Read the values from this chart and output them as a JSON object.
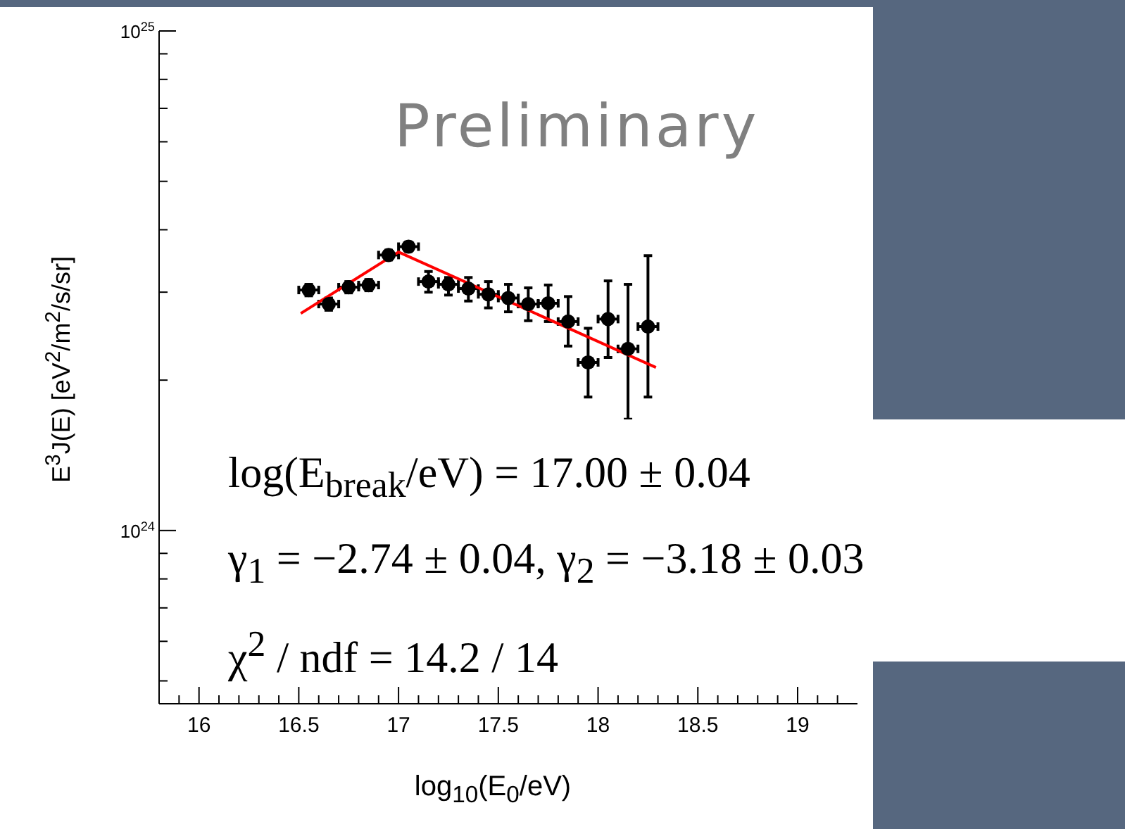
{
  "chart_data": {
    "type": "scatter",
    "xlabel": "log$_{10}$(E$_{0}$/eV)",
    "ylabel": "E$^{3}$J(E) [eV$^{2}$/m$^{2}$/s/sr]",
    "annotations": [
      "Preliminary",
      "log(E$_{break}$/eV) = 17.00 ± 0.04",
      "γ$_{1}$ = −2.74 ± 0.04,  γ$_{2}$ = −3.18 ± 0.03",
      "χ$^{2}$ / ndf = 14.2 / 14"
    ],
    "log": "y",
    "xlim": [
      15.8,
      19.3
    ],
    "ylim": [
      4.5e+23,
      1e+25
    ],
    "xticks": [
      {
        "value": 15.9,
        "label": null
      },
      16,
      {
        "value": 16.1,
        "label": null
      },
      {
        "value": 16.2,
        "label": null
      },
      {
        "value": 16.3,
        "label": null
      },
      {
        "value": 16.4,
        "label": null
      },
      16.5,
      {
        "value": 16.6,
        "label": null
      },
      {
        "value": 16.7,
        "label": null
      },
      {
        "value": 16.8,
        "label": null
      },
      {
        "value": 16.9,
        "label": null
      },
      17,
      {
        "value": 17.1,
        "label": null
      },
      {
        "value": 17.2,
        "label": null
      },
      {
        "value": 17.3,
        "label": null
      },
      {
        "value": 17.4,
        "label": null
      },
      17.5,
      {
        "value": 17.6,
        "label": null
      },
      {
        "value": 17.7,
        "label": null
      },
      {
        "value": 17.8,
        "label": null
      },
      {
        "value": 17.9,
        "label": null
      },
      18,
      {
        "value": 18.1,
        "label": null
      },
      {
        "value": 18.2,
        "label": null
      },
      {
        "value": 18.3,
        "label": null
      },
      {
        "value": 18.4,
        "label": null
      },
      18.5,
      {
        "value": 18.6,
        "label": null
      },
      {
        "value": 18.7,
        "label": null
      },
      {
        "value": 18.8,
        "label": null
      },
      {
        "value": 18.9,
        "label": null
      },
      19,
      {
        "value": 19.1,
        "label": null
      },
      {
        "value": 19.2,
        "label": null
      }
    ],
    "yticks": [
      {
        "value": 5e+23,
        "label": null
      },
      {
        "value": 6e+23,
        "label": null
      },
      {
        "value": 7e+23,
        "label": null
      },
      {
        "value": 8e+23,
        "label": null
      },
      {
        "value": 9e+23,
        "label": null
      },
      {
        "value": 1e+24,
        "label": "10$^{24}$"
      },
      {
        "value": 2e+24,
        "label": null
      },
      {
        "value": 3e+24,
        "label": null
      },
      {
        "value": 4e+24,
        "label": null
      },
      {
        "value": 5e+24,
        "label": null
      },
      {
        "value": 6e+24,
        "label": null
      },
      {
        "value": 7e+24,
        "label": null
      },
      {
        "value": 8e+24,
        "label": null
      },
      {
        "value": 9e+24,
        "label": null
      },
      {
        "value": 1e+25,
        "label": "10$^{25}$"
      }
    ],
    "series": [
      {
        "marker": "circle",
        "color": "#000000",
        "x": [
          16.55,
          16.65,
          16.75,
          16.85,
          16.95,
          17.05,
          17.15,
          17.25,
          17.35,
          17.45,
          17.55,
          17.65,
          17.75,
          17.85,
          17.95,
          18.05,
          18.15,
          18.25
        ],
        "values": [
          3.03e+24,
          2.84e+24,
          3.07e+24,
          3.1e+24,
          3.56e+24,
          3.7e+24,
          3.15e+24,
          3.11e+24,
          3.05e+24,
          2.97e+24,
          2.92e+24,
          2.84e+24,
          2.85e+24,
          2.62e+24,
          2.17e+24,
          2.65e+24,
          2.31e+24,
          2.56e+24
        ],
        "errors": [
          8e+22,
          8e+22,
          8e+22,
          8e+22,
          8e+22,
          8e+22,
          [
            3e+24,
            3.3e+24
          ],
          [
            2.96e+24,
            3.21e+24
          ],
          [
            2.88e+24,
            3.21e+24
          ],
          [
            2.79e+24,
            3.15e+24
          ],
          [
            2.74e+24,
            3.11e+24
          ],
          [
            2.63e+24,
            3.06e+24
          ],
          [
            2.62e+24,
            3.1e+24
          ],
          [
            2.34e+24,
            2.94e+24
          ],
          [
            1.85e+24,
            2.54e+24
          ],
          [
            2.22e+24,
            3.16e+24
          ],
          [
            1.67e+24,
            3.11e+24
          ],
          [
            1.85e+24,
            3.55e+24
          ]
        ],
        "xerrors": [
          0.05,
          0.05,
          0.05,
          0.05,
          0.05,
          0.05,
          0.05,
          0.05,
          0.05,
          0.05,
          0.05,
          0.05,
          0.05,
          0.05,
          0.05,
          0.05,
          0.05,
          0.05
        ]
      },
      {
        "type": "line",
        "color": "#ff0000",
        "x": [
          16.51,
          17.0,
          18.29
        ],
        "values": [
          2.72e+24,
          3.61e+24,
          2.12e+24
        ]
      }
    ]
  }
}
